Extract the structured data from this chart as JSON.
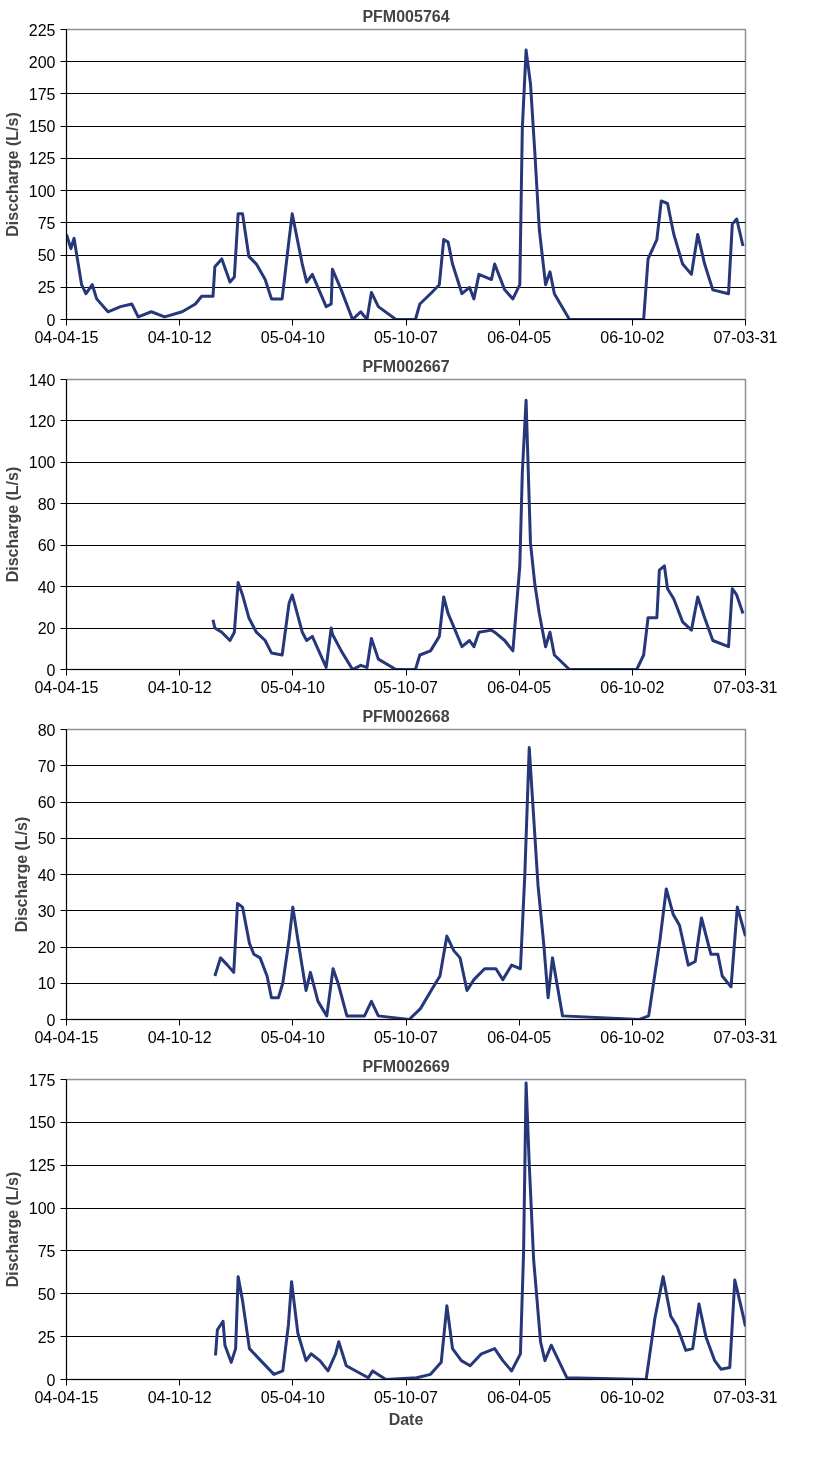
{
  "chart_data": [
    {
      "type": "line",
      "title": "PFM005764",
      "ylabel": "Disccharge (L/s)",
      "grid": "y",
      "ylim": [
        0,
        225
      ],
      "yticks": [
        0,
        25,
        50,
        75,
        100,
        125,
        150,
        175,
        200,
        225
      ],
      "xlim": [
        "2004-04-15",
        "2007-03-31"
      ],
      "xticks": [
        {
          "value": "2004-04-15",
          "label": "04-04-15"
        },
        {
          "value": "2004-10-12",
          "label": "04-10-12"
        },
        {
          "value": "2005-04-10",
          "label": "05-04-10"
        },
        {
          "value": "2005-10-07",
          "label": "05-10-07"
        },
        {
          "value": "2006-04-05",
          "label": "06-04-05"
        },
        {
          "value": "2006-10-02",
          "label": "06-10-02"
        },
        {
          "value": "2007-03-31",
          "label": "07-03-31"
        }
      ],
      "series": [
        {
          "color": "#26377a",
          "x": [
            "2004-04-15",
            "2004-04-22",
            "2004-04-27",
            "2004-05-09",
            "2004-05-16",
            "2004-05-26",
            "2004-06-02",
            "2004-06-20",
            "2004-07-10",
            "2004-07-28",
            "2004-08-07",
            "2004-08-28",
            "2004-09-18",
            "2004-10-16",
            "2004-11-06",
            "2004-11-16",
            "2004-12-04",
            "2004-12-07",
            "2004-12-18",
            "2004-12-31",
            "2005-01-07",
            "2005-01-13",
            "2005-01-20",
            "2005-01-30",
            "2005-02-11",
            "2005-02-25",
            "2005-03-07",
            "2005-03-24",
            "2005-04-04",
            "2005-04-09",
            "2005-04-25",
            "2005-05-02",
            "2005-05-11",
            "2005-06-02",
            "2005-06-10",
            "2005-06-12",
            "2005-06-26",
            "2005-07-14",
            "2005-07-27",
            "2005-08-06",
            "2005-08-13",
            "2005-08-24",
            "2005-09-21",
            "2005-10-22",
            "2005-10-29",
            "2005-11-15",
            "2005-11-29",
            "2005-12-06",
            "2005-12-13",
            "2005-12-20",
            "2006-01-04",
            "2006-01-16",
            "2006-01-23",
            "2006-01-31",
            "2006-02-20",
            "2006-02-25",
            "2006-03-13",
            "2006-03-26",
            "2006-04-06",
            "2006-04-10",
            "2006-04-16",
            "2006-04-23",
            "2006-04-30",
            "2006-05-07",
            "2006-05-17",
            "2006-05-24",
            "2006-05-31",
            "2006-06-24",
            "2006-10-20",
            "2006-10-27",
            "2006-11-10",
            "2006-11-17",
            "2006-11-27",
            "2006-12-07",
            "2006-12-21",
            "2007-01-04",
            "2007-01-14",
            "2007-01-25",
            "2007-02-07",
            "2007-03-04",
            "2007-03-10",
            "2007-03-17",
            "2007-03-27"
          ],
          "values": [
            66,
            55,
            63,
            27,
            20,
            27,
            16,
            6,
            10,
            12,
            2,
            6,
            2,
            6,
            12,
            18,
            18,
            41,
            47,
            29,
            33,
            82,
            82,
            49,
            43,
            31,
            16,
            16,
            62,
            82,
            43,
            29,
            35,
            10,
            12,
            39,
            23,
            0,
            6,
            0,
            21,
            10,
            0,
            0,
            12,
            20,
            27,
            62,
            60,
            43,
            20,
            25,
            16,
            35,
            31,
            43,
            23,
            16,
            27,
            148,
            209,
            183,
            129,
            70,
            27,
            37,
            20,
            0,
            0,
            47,
            62,
            92,
            90,
            66,
            43,
            35,
            66,
            43,
            23,
            20,
            74,
            78,
            57
          ]
        }
      ]
    },
    {
      "type": "line",
      "title": "PFM002667",
      "ylabel": "Discharge (L/s)",
      "grid": "y",
      "ylim": [
        0,
        140
      ],
      "yticks": [
        0,
        20,
        40,
        60,
        80,
        100,
        120,
        140
      ],
      "xlim": [
        "2004-04-15",
        "2007-03-31"
      ],
      "xticks": [
        {
          "value": "2004-04-15",
          "label": "04-04-15"
        },
        {
          "value": "2004-10-12",
          "label": "04-10-12"
        },
        {
          "value": "2005-04-10",
          "label": "05-04-10"
        },
        {
          "value": "2005-10-07",
          "label": "05-10-07"
        },
        {
          "value": "2006-04-05",
          "label": "06-04-05"
        },
        {
          "value": "2006-10-02",
          "label": "06-10-02"
        },
        {
          "value": "2007-03-31",
          "label": "07-03-31"
        }
      ],
      "series": [
        {
          "color": "#26377a",
          "x": [
            "2004-12-04",
            "2004-12-07",
            "2004-12-18",
            "2004-12-31",
            "2005-01-07",
            "2005-01-13",
            "2005-01-20",
            "2005-01-30",
            "2005-02-11",
            "2005-02-25",
            "2005-03-07",
            "2005-03-24",
            "2005-04-04",
            "2005-04-09",
            "2005-04-25",
            "2005-05-02",
            "2005-05-11",
            "2005-06-02",
            "2005-06-10",
            "2005-06-12",
            "2005-06-26",
            "2005-07-14",
            "2005-07-27",
            "2005-08-06",
            "2005-08-13",
            "2005-08-24",
            "2005-09-21",
            "2005-10-22",
            "2005-10-29",
            "2005-11-15",
            "2005-11-29",
            "2005-12-06",
            "2005-12-13",
            "2005-12-20",
            "2006-01-04",
            "2006-01-16",
            "2006-01-23",
            "2006-01-31",
            "2006-02-20",
            "2006-02-25",
            "2006-03-13",
            "2006-03-26",
            "2006-04-06",
            "2006-04-10",
            "2006-04-16",
            "2006-04-23",
            "2006-04-30",
            "2006-05-07",
            "2006-05-17",
            "2006-05-24",
            "2006-05-31",
            "2006-06-24",
            "2006-10-09",
            "2006-10-20",
            "2006-10-27",
            "2006-11-10",
            "2006-11-14",
            "2006-11-22",
            "2006-11-27",
            "2006-12-07",
            "2006-12-21",
            "2007-01-04",
            "2007-01-14",
            "2007-01-25",
            "2007-02-07",
            "2007-03-04",
            "2007-03-10",
            "2007-03-17",
            "2007-03-27"
          ],
          "values": [
            24,
            20,
            18,
            14,
            18,
            42,
            36,
            25,
            18,
            14,
            8,
            7,
            32,
            36,
            18,
            14,
            16,
            1,
            20,
            17,
            9,
            0,
            2,
            1,
            15,
            5,
            0,
            0,
            7,
            9,
            16,
            35,
            27,
            22,
            11,
            14,
            11,
            18,
            19,
            18,
            14,
            9,
            50,
            95,
            130,
            61,
            41,
            27,
            11,
            18,
            7,
            0,
            0,
            7,
            25,
            25,
            48,
            50,
            39,
            34,
            23,
            19,
            35,
            25,
            14,
            11,
            39,
            36,
            27
          ]
        }
      ]
    },
    {
      "type": "line",
      "title": "PFM002668",
      "ylabel": "Discharge (L/s)",
      "grid": "y",
      "ylim": [
        0,
        80
      ],
      "yticks": [
        0,
        10,
        20,
        30,
        40,
        50,
        60,
        70,
        80
      ],
      "xlim": [
        "2004-04-15",
        "2007-03-31"
      ],
      "xticks": [
        {
          "value": "2004-04-15",
          "label": "04-04-15"
        },
        {
          "value": "2004-10-12",
          "label": "04-10-12"
        },
        {
          "value": "2005-04-10",
          "label": "05-04-10"
        },
        {
          "value": "2005-10-07",
          "label": "05-10-07"
        },
        {
          "value": "2006-04-05",
          "label": "06-04-05"
        },
        {
          "value": "2006-10-02",
          "label": "06-10-02"
        },
        {
          "value": "2007-03-31",
          "label": "07-03-31"
        }
      ],
      "series": [
        {
          "color": "#26377a",
          "x": [
            "2004-12-07",
            "2004-12-16",
            "2004-12-27",
            "2005-01-06",
            "2005-01-12",
            "2005-01-20",
            "2005-01-31",
            "2005-02-07",
            "2005-02-17",
            "2005-02-28",
            "2005-03-07",
            "2005-03-18",
            "2005-03-25",
            "2005-04-04",
            "2005-04-10",
            "2005-04-18",
            "2005-05-01",
            "2005-05-08",
            "2005-05-20",
            "2005-06-03",
            "2005-06-13",
            "2005-06-21",
            "2005-07-05",
            "2005-08-02",
            "2005-08-13",
            "2005-08-24",
            "2005-10-12",
            "2005-10-30",
            "2005-11-16",
            "2005-11-30",
            "2005-12-11",
            "2005-12-22",
            "2006-01-01",
            "2006-01-12",
            "2006-01-23",
            "2006-02-09",
            "2006-02-27",
            "2006-03-10",
            "2006-03-24",
            "2006-04-07",
            "2006-04-14",
            "2006-04-21",
            "2006-04-28",
            "2006-05-05",
            "2006-05-14",
            "2006-05-21",
            "2006-05-28",
            "2006-06-13",
            "2006-10-13",
            "2006-10-28",
            "2006-11-15",
            "2006-11-25",
            "2006-12-06",
            "2006-12-16",
            "2006-12-30",
            "2007-01-10",
            "2007-01-20",
            "2007-02-04",
            "2007-02-15",
            "2007-02-22",
            "2007-03-08",
            "2007-03-18",
            "2007-03-31"
          ],
          "values": [
            12,
            17,
            15,
            13,
            32,
            31,
            21,
            18,
            17,
            12,
            6,
            6,
            10,
            22,
            31,
            22,
            8,
            13,
            5,
            1,
            14,
            10,
            1,
            1,
            5,
            1,
            0,
            3,
            8,
            12,
            23,
            19,
            17,
            8,
            11,
            14,
            14,
            11,
            15,
            14,
            40,
            75,
            56,
            37,
            21,
            6,
            17,
            1,
            0,
            1,
            22,
            36,
            29,
            26,
            15,
            16,
            28,
            18,
            18,
            12,
            9,
            31,
            23
          ]
        }
      ]
    },
    {
      "type": "line",
      "title": "PFM002669",
      "ylabel": "Discharge (L/s)",
      "xlabel": "Date",
      "grid": "y",
      "ylim": [
        0,
        175
      ],
      "yticks": [
        0,
        25,
        50,
        75,
        100,
        125,
        150,
        175
      ],
      "xlim": [
        "2004-04-15",
        "2007-03-31"
      ],
      "xticks": [
        {
          "value": "2004-04-15",
          "label": "04-04-15"
        },
        {
          "value": "2004-10-12",
          "label": "04-10-12"
        },
        {
          "value": "2005-04-10",
          "label": "05-04-10"
        },
        {
          "value": "2005-10-07",
          "label": "05-10-07"
        },
        {
          "value": "2006-04-05",
          "label": "06-04-05"
        },
        {
          "value": "2006-10-02",
          "label": "06-10-02"
        },
        {
          "value": "2007-03-31",
          "label": "07-03-31"
        }
      ],
      "series": [
        {
          "color": "#26377a",
          "x": [
            "2004-12-08",
            "2004-12-11",
            "2004-12-20",
            "2004-12-23",
            "2005-01-02",
            "2005-01-09",
            "2005-01-13",
            "2005-01-20",
            "2005-01-31",
            "2005-02-18",
            "2005-03-11",
            "2005-03-25",
            "2005-04-03",
            "2005-04-08",
            "2005-04-18",
            "2005-05-01",
            "2005-05-09",
            "2005-05-23",
            "2005-06-05",
            "2005-06-17",
            "2005-06-22",
            "2005-07-04",
            "2005-08-08",
            "2005-08-15",
            "2005-09-05",
            "2005-10-24",
            "2005-11-15",
            "2005-12-02",
            "2005-12-11",
            "2005-12-20",
            "2006-01-03",
            "2006-01-17",
            "2006-02-04",
            "2006-02-25",
            "2006-03-10",
            "2006-03-24",
            "2006-04-07",
            "2006-04-12",
            "2006-04-16",
            "2006-04-21",
            "2006-04-28",
            "2006-05-09",
            "2006-05-16",
            "2006-05-26",
            "2006-06-20",
            "2006-10-24",
            "2006-11-07",
            "2006-11-20",
            "2006-12-02",
            "2006-12-12",
            "2006-12-26",
            "2007-01-06",
            "2007-01-16",
            "2007-01-27",
            "2007-02-10",
            "2007-02-20",
            "2007-03-06",
            "2007-03-14",
            "2007-03-23",
            "2007-03-31"
          ],
          "values": [
            14,
            29,
            34,
            20,
            10,
            18,
            60,
            46,
            18,
            11,
            3,
            5,
            32,
            57,
            27,
            11,
            15,
            11,
            5,
            15,
            22,
            8,
            1,
            5,
            0,
            1,
            3,
            10,
            43,
            18,
            11,
            8,
            15,
            18,
            11,
            5,
            15,
            74,
            173,
            126,
            70,
            22,
            11,
            20,
            1,
            0,
            36,
            60,
            37,
            31,
            17,
            18,
            44,
            25,
            11,
            6,
            7,
            58,
            44,
            31
          ]
        }
      ]
    }
  ]
}
